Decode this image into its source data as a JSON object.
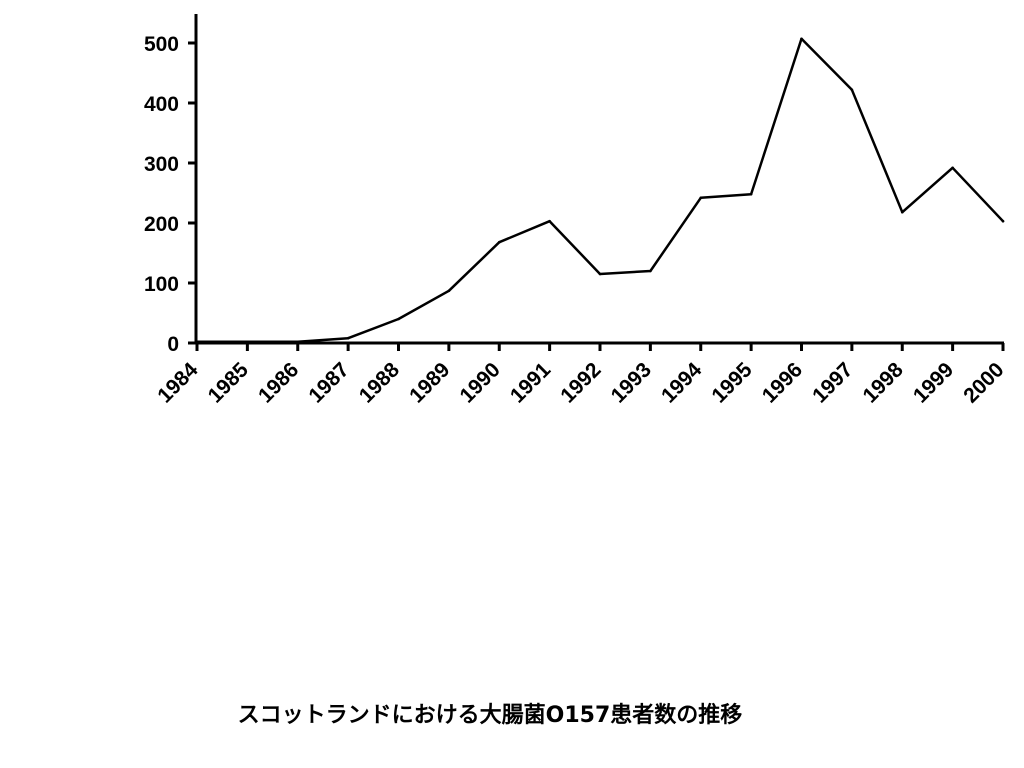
{
  "chart_data": {
    "type": "line",
    "title": "",
    "xlabel": "",
    "ylabel": "",
    "x": [
      "1984",
      "1985",
      "1986",
      "1987",
      "1988",
      "1989",
      "1990",
      "1991",
      "1992",
      "1993",
      "1994",
      "1995",
      "1996",
      "1997",
      "1998",
      "1999",
      "2000"
    ],
    "series": [
      {
        "values": [
          2,
          2,
          2,
          8,
          40,
          87,
          168,
          203,
          115,
          120,
          242,
          248,
          507,
          422,
          218,
          292,
          203
        ]
      }
    ],
    "yticks": [
      0,
      100,
      200,
      300,
      400,
      500
    ],
    "ylim": [
      0,
      550
    ],
    "grid": false,
    "line_color": "#000000"
  },
  "caption": "スコットランドにおける大腸菌O157患者数の推移"
}
